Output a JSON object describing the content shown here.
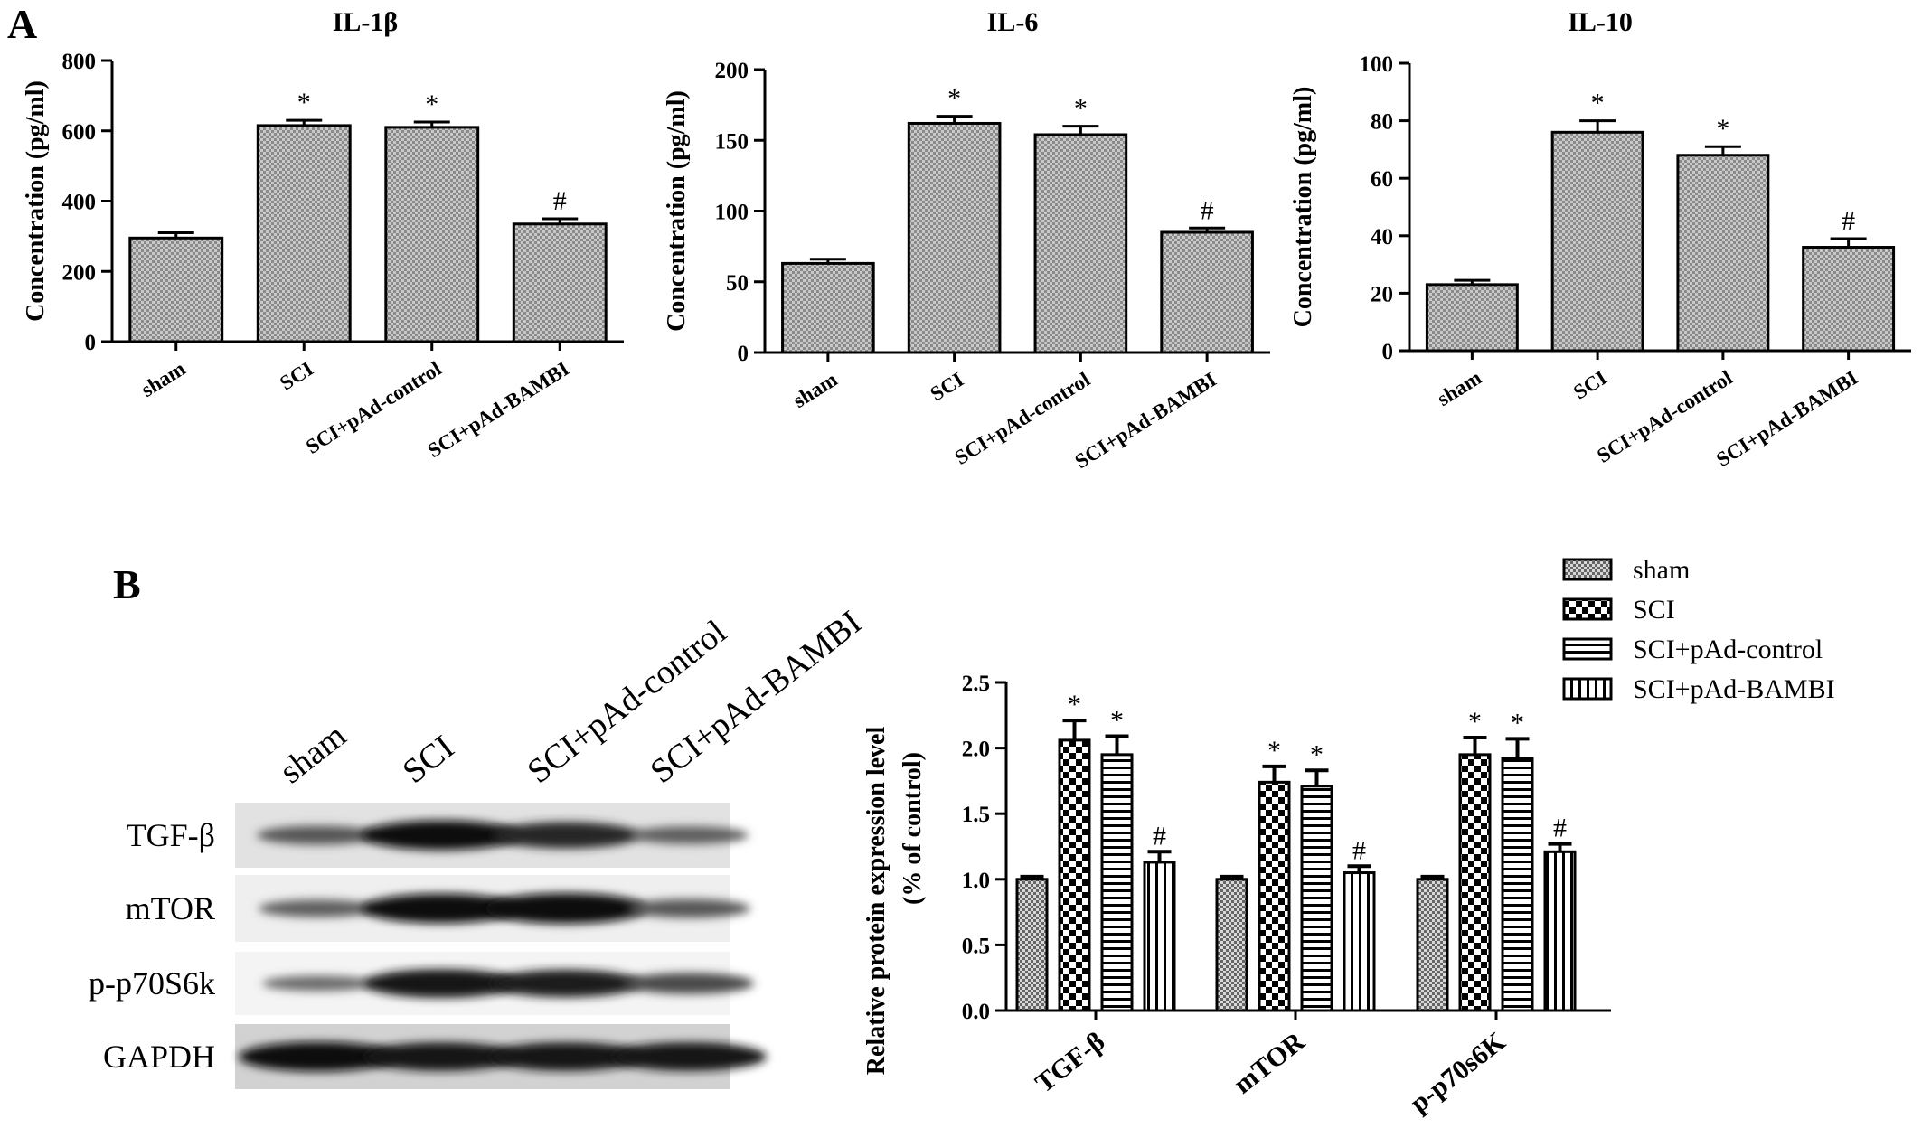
{
  "panels": {
    "a_letter": "A",
    "b_letter": "B"
  },
  "colors": {
    "axis": "#000000",
    "bar_fill": "#bdbdbd",
    "error_bar": "#000000"
  },
  "blot": {
    "lanes": [
      "sham",
      "SCI",
      "SCI+pAd-control",
      "SCI+pAd-BAMBI"
    ],
    "rows": [
      {
        "label": "TGF-β",
        "background": "#e2e2e2",
        "bands": [
          0.45,
          0.95,
          0.8,
          0.4
        ]
      },
      {
        "label": "mTOR",
        "background": "#efefef",
        "bands": [
          0.4,
          0.95,
          1.0,
          0.45
        ]
      },
      {
        "label": "p-p70S6k",
        "background": "#f4f4f4",
        "bands": [
          0.3,
          0.9,
          0.85,
          0.55
        ]
      },
      {
        "label": "GAPDH",
        "background": "#d2d2d2",
        "bands": [
          0.95,
          0.9,
          0.9,
          0.9
        ]
      }
    ]
  },
  "chart_data": [
    {
      "type": "bar",
      "title": "IL-1β",
      "ylabel": "Concentration (pg/ml)",
      "categories": [
        "sham",
        "SCI",
        "SCI+pAd-control",
        "SCI+pAd-BAMBI"
      ],
      "values": [
        295,
        615,
        610,
        335
      ],
      "errors": [
        15,
        15,
        15,
        15
      ],
      "annotations": [
        "",
        "*",
        "*",
        "#"
      ],
      "ylim": [
        0,
        800
      ],
      "yticks": [
        0,
        200,
        400,
        600,
        800
      ]
    },
    {
      "type": "bar",
      "title": "IL-6",
      "ylabel": "Concentration (pg/ml)",
      "categories": [
        "sham",
        "SCI",
        "SCI+pAd-control",
        "SCI+pAd-BAMBI"
      ],
      "values": [
        63,
        162,
        154,
        85
      ],
      "errors": [
        3,
        5,
        6,
        3
      ],
      "annotations": [
        "",
        "*",
        "*",
        "#"
      ],
      "ylim": [
        0,
        200
      ],
      "yticks": [
        0,
        50,
        100,
        150,
        200
      ]
    },
    {
      "type": "bar",
      "title": "IL-10",
      "ylabel": "Concentration (pg/ml)",
      "categories": [
        "sham",
        "SCI",
        "SCI+pAd-control",
        "SCI+pAd-BAMBI"
      ],
      "values": [
        23,
        76,
        68,
        36
      ],
      "errors": [
        1.5,
        4,
        3,
        3
      ],
      "annotations": [
        "",
        "*",
        "*",
        "#"
      ],
      "ylim": [
        0,
        100
      ],
      "yticks": [
        0,
        20,
        40,
        60,
        80,
        100
      ]
    },
    {
      "type": "bar",
      "ylabel": "Relative protein expression level",
      "ylabel2": "(% of control)",
      "categories": [
        "TGF-β",
        "mTOR",
        "p-p70s6K"
      ],
      "series": [
        {
          "name": "sham",
          "pattern": "dots",
          "values": [
            1.0,
            1.0,
            1.0
          ],
          "errors": [
            0.02,
            0.02,
            0.02
          ],
          "annotations": [
            "",
            "",
            ""
          ]
        },
        {
          "name": "SCI",
          "pattern": "checker",
          "values": [
            2.06,
            1.74,
            1.95
          ],
          "errors": [
            0.15,
            0.12,
            0.13
          ],
          "annotations": [
            "*",
            "*",
            "*"
          ]
        },
        {
          "name": "SCI+pAd-control",
          "pattern": "hlines",
          "values": [
            1.95,
            1.71,
            1.92
          ],
          "errors": [
            0.14,
            0.12,
            0.15
          ],
          "annotations": [
            "*",
            "*",
            "*"
          ]
        },
        {
          "name": "SCI+pAd-BAMBI",
          "pattern": "vlines",
          "values": [
            1.13,
            1.05,
            1.21
          ],
          "errors": [
            0.08,
            0.05,
            0.06
          ],
          "annotations": [
            "#",
            "#",
            "#"
          ]
        }
      ],
      "ylim": [
        0,
        2.5
      ],
      "yticks": [
        "0.0",
        "0.5",
        "1.0",
        "1.5",
        "2.0",
        "2.5"
      ],
      "legend_position": "top-right"
    }
  ]
}
